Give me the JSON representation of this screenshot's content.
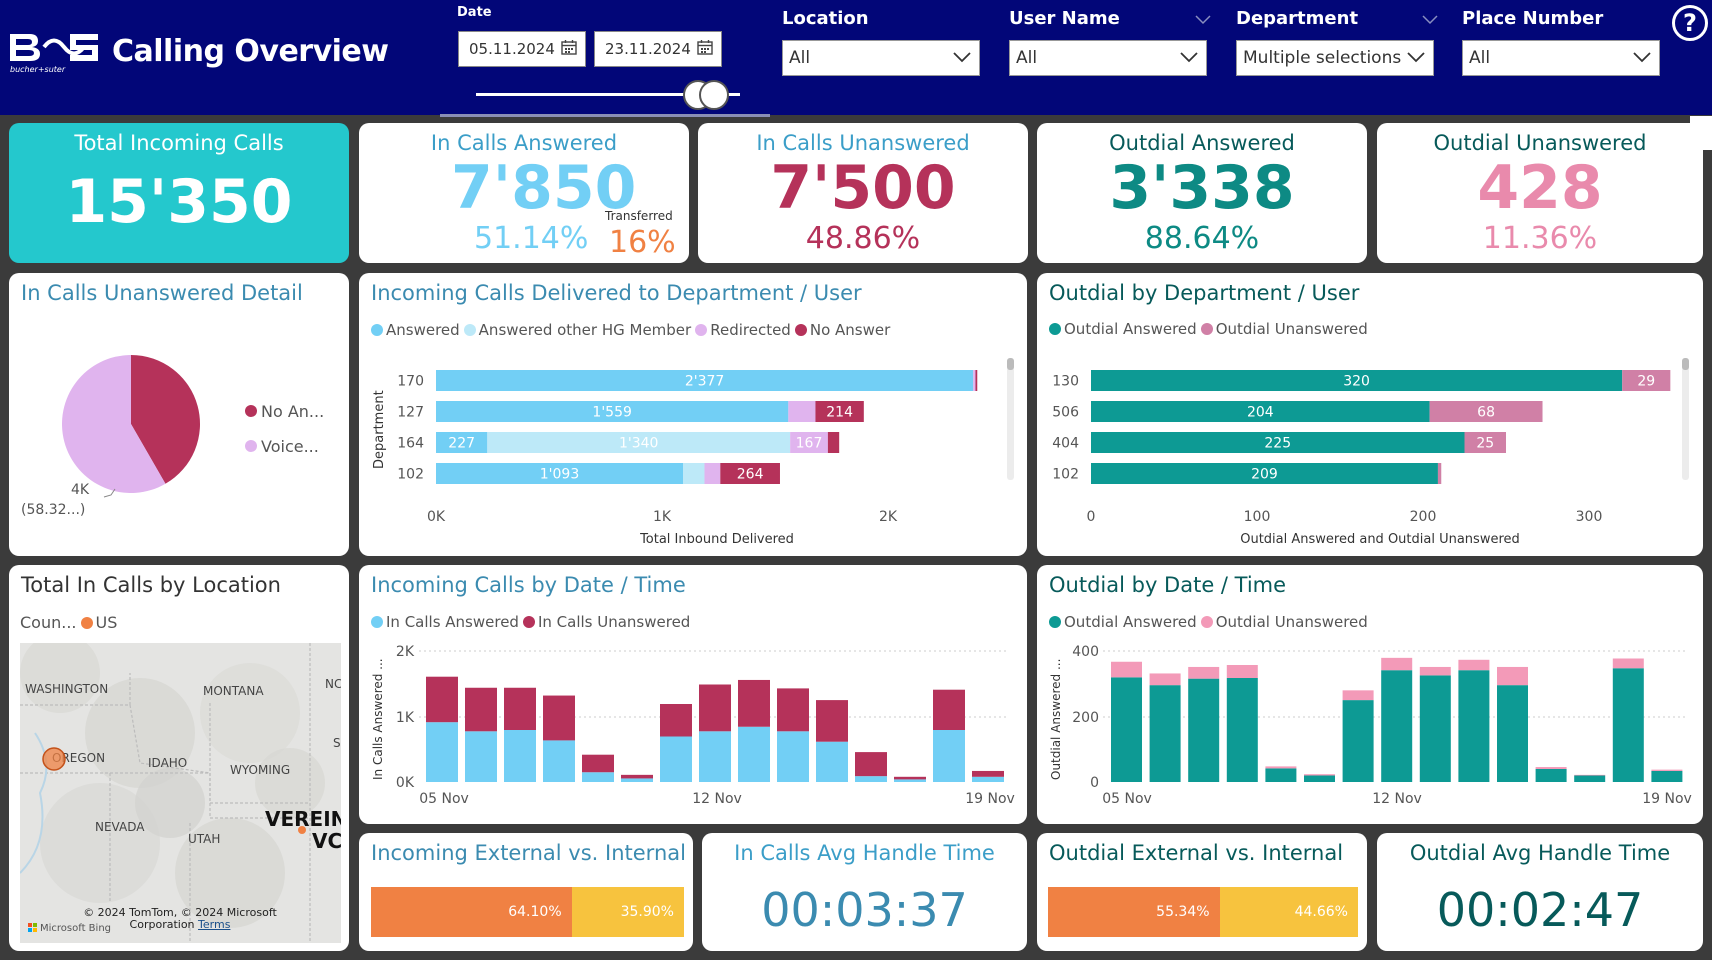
{
  "header": {
    "logo_text": "bucher+suter",
    "title": "Calling Overview",
    "date_label": "Date",
    "date_from": "05.11.2024",
    "date_to": "23.11.2024",
    "help_label": "?"
  },
  "filters": [
    {
      "label": "Location",
      "value": "All"
    },
    {
      "label": "User Name",
      "value": "All"
    },
    {
      "label": "Department",
      "value": "Multiple selections"
    },
    {
      "label": "Place Number",
      "value": "All"
    }
  ],
  "kpis": {
    "total_incoming": {
      "title": "Total Incoming Calls",
      "value": "15'350"
    },
    "in_answered": {
      "title": "In Calls Answered",
      "value": "7'850",
      "pct": "51.14%",
      "transferred_label": "Transferred",
      "transferred_value": "16%"
    },
    "in_unanswered": {
      "title": "In Calls Unanswered",
      "value": "7'500",
      "pct": "48.86%"
    },
    "outdial_answered": {
      "title": "Outdial Answered",
      "value": "3'338",
      "pct": "88.64%"
    },
    "outdial_unanswered": {
      "title": "Outdial Unanswered",
      "value": "428",
      "pct": "11.36%"
    }
  },
  "colors": {
    "answered": "#72cff5",
    "answered_other": "#bde9f8",
    "redirected": "#e0b4ee",
    "no_answer": "#b5325a",
    "outdial_answered": "#0d9a94",
    "outdial_unanswered": "#d080a6",
    "teal_card": "#24c8cd",
    "orange": "#f08143",
    "yellow": "#f7c33e"
  },
  "pie": {
    "title": "In Calls Unanswered Detail",
    "legend": [
      "No An...",
      "Voice..."
    ],
    "label_value": "4K",
    "label_pct": "(58.32...)"
  },
  "dept_chart": {
    "title": "Incoming Calls Delivered to Department / User",
    "legend": [
      "Answered",
      "Answered other HG Member",
      "Redirected",
      "No Answer"
    ],
    "ylabel": "Department",
    "xlabel": "Total Inbound Delivered",
    "xticks": [
      "0K",
      "1K",
      "2K"
    ]
  },
  "outdial_dept_chart": {
    "title": "Outdial by Department / User",
    "legend": [
      "Outdial Answered",
      "Outdial Unanswered"
    ],
    "xlabel": "Outdial Answered and Outdial Unanswered",
    "xticks": [
      "0",
      "100",
      "200",
      "300"
    ]
  },
  "map": {
    "title": "Total In Calls by Location",
    "legend_label": "Coun...",
    "legend_item": "US",
    "labels": [
      "WASHINGTON",
      "MONTANA",
      "OREGON",
      "IDAHO",
      "WYOMING",
      "NEVADA",
      "UTAH",
      "VEREIN",
      "VC",
      "NC",
      "S"
    ],
    "credit": "© 2024 TomTom, © 2024 Microsoft Corporation",
    "terms": "Terms",
    "bing": "Microsoft Bing"
  },
  "in_time_chart": {
    "title": "Incoming Calls by Date / Time",
    "legend": [
      "In Calls Answered",
      "In Calls Unanswered"
    ],
    "ylabel": "In Calls Answered ...",
    "yticks": [
      "2K",
      "1K",
      "0K"
    ],
    "xticks": [
      "05 Nov",
      "12 Nov",
      "19 Nov"
    ]
  },
  "out_time_chart": {
    "title": "Outdial by Date / Time",
    "legend": [
      "Outdial Answered",
      "Outdial Unanswered"
    ],
    "ylabel": "Outdial Answered ...",
    "yticks": [
      "400",
      "200",
      "0"
    ],
    "xticks": [
      "05 Nov",
      "12 Nov",
      "19 Nov"
    ]
  },
  "in_ext_int": {
    "title": "Incoming External vs. Internal",
    "external": "64.10%",
    "internal": "35.90%"
  },
  "in_aht": {
    "title": "In Calls Avg Handle Time",
    "value": "00:03:37"
  },
  "out_ext_int": {
    "title": "Outdial External vs. Internal",
    "external": "55.34%",
    "internal": "44.66%"
  },
  "out_aht": {
    "title": "Outdial Avg Handle Time",
    "value": "00:02:47"
  },
  "chart_data": [
    {
      "type": "pie",
      "title": "In Calls Unanswered Detail",
      "slices": [
        {
          "name": "No Answer",
          "value": 41.68
        },
        {
          "name": "Voicemail",
          "value": 58.32
        }
      ]
    },
    {
      "type": "bar",
      "orientation": "horizontal",
      "stacked": true,
      "title": "Incoming Calls Delivered to Department / User",
      "xlabel": "Total Inbound Delivered",
      "ylabel": "Department",
      "xlim": [
        0,
        2600
      ],
      "categories": [
        "170",
        "127",
        "164",
        "102"
      ],
      "series": [
        {
          "name": "Answered",
          "values": [
            2377,
            1559,
            227,
            1093
          ],
          "labels": [
            "2'377",
            "1'559",
            "227",
            "1'093"
          ]
        },
        {
          "name": "Answered other HG Member",
          "values": [
            0,
            0,
            1340,
            95
          ],
          "labels": [
            "",
            "",
            "1'340",
            ""
          ]
        },
        {
          "name": "Redirected",
          "values": [
            10,
            120,
            167,
            70
          ],
          "labels": [
            "",
            "",
            "167",
            ""
          ]
        },
        {
          "name": "No Answer",
          "values": [
            8,
            214,
            50,
            264
          ],
          "labels": [
            "",
            "214",
            "",
            "264"
          ]
        }
      ]
    },
    {
      "type": "bar",
      "orientation": "horizontal",
      "stacked": true,
      "title": "Outdial by Department / User",
      "xlabel": "Outdial Answered and Outdial Unanswered",
      "xlim": [
        0,
        350
      ],
      "categories": [
        "130",
        "506",
        "404",
        "102"
      ],
      "series": [
        {
          "name": "Outdial Answered",
          "values": [
            320,
            204,
            225,
            209
          ],
          "labels": [
            "320",
            "204",
            "225",
            "209"
          ]
        },
        {
          "name": "Outdial Unanswered",
          "values": [
            29,
            68,
            25,
            2
          ],
          "labels": [
            "29",
            "68",
            "25",
            ""
          ]
        }
      ]
    },
    {
      "type": "bar",
      "stacked": true,
      "title": "Incoming Calls by Date / Time",
      "ylim": [
        0,
        2000
      ],
      "categories": [
        "05 Nov",
        "06 Nov",
        "07 Nov",
        "08 Nov",
        "09 Nov",
        "10 Nov",
        "11 Nov",
        "12 Nov",
        "13 Nov",
        "14 Nov",
        "15 Nov",
        "16 Nov",
        "17 Nov",
        "18 Nov",
        "19 Nov"
      ],
      "series": [
        {
          "name": "In Calls Answered",
          "values": [
            920,
            780,
            800,
            640,
            150,
            55,
            700,
            780,
            850,
            780,
            620,
            90,
            40,
            800,
            80
          ]
        },
        {
          "name": "In Calls Unanswered",
          "values": [
            700,
            670,
            650,
            690,
            270,
            55,
            500,
            720,
            720,
            660,
            640,
            370,
            40,
            620,
            90
          ]
        }
      ]
    },
    {
      "type": "bar",
      "stacked": true,
      "title": "Outdial by Date / Time",
      "ylim": [
        0,
        400
      ],
      "categories": [
        "05 Nov",
        "06 Nov",
        "07 Nov",
        "08 Nov",
        "09 Nov",
        "10 Nov",
        "11 Nov",
        "12 Nov",
        "13 Nov",
        "14 Nov",
        "15 Nov",
        "16 Nov",
        "17 Nov",
        "18 Nov",
        "19 Nov"
      ],
      "series": [
        {
          "name": "Outdial Answered",
          "values": [
            322,
            298,
            318,
            320,
            42,
            20,
            252,
            344,
            328,
            344,
            298,
            40,
            20,
            350,
            34
          ]
        },
        {
          "name": "Outdial Unanswered",
          "values": [
            48,
            36,
            36,
            40,
            6,
            4,
            30,
            38,
            26,
            32,
            56,
            6,
            2,
            30,
            4
          ]
        }
      ]
    }
  ]
}
